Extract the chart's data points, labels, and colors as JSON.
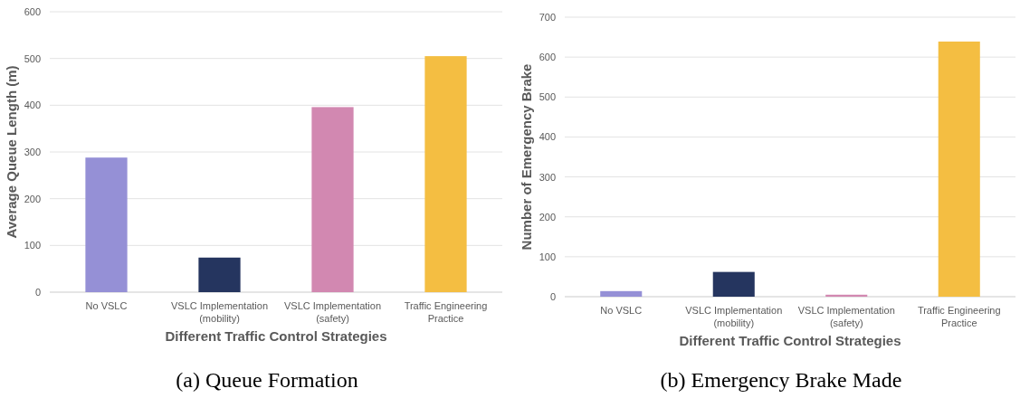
{
  "chart_data": [
    {
      "type": "bar",
      "title": "(a) Queue Formation",
      "xlabel": "Different Traffic Control Strategies",
      "ylabel": "Average Queue Length (m)",
      "categories": [
        "No VSLC",
        "VSLC Implementation (mobility)",
        "VSLC Implementation (safety)",
        "Traffic Engineering Practice"
      ],
      "values": [
        288,
        74,
        396,
        505
      ],
      "colors": [
        "#9590d6",
        "#25355f",
        "#d288b1",
        "#f4be42"
      ],
      "ylim": [
        0,
        600
      ],
      "yticks": [
        0,
        100,
        200,
        300,
        400,
        500,
        600
      ],
      "grid": "y"
    },
    {
      "type": "bar",
      "title": "(b) Emergency Brake Made",
      "xlabel": "Different Traffic Control Strategies",
      "ylabel": "Number of Emergency Brake",
      "categories": [
        "No VSLC",
        "VSLC Implementation (mobility)",
        "VSLC Implementation (safety)",
        "Traffic Engineering Practice"
      ],
      "values": [
        14,
        62,
        5,
        639
      ],
      "colors": [
        "#9590d6",
        "#25355f",
        "#d288b1",
        "#f4be42"
      ],
      "ylim": [
        0,
        700
      ],
      "yticks": [
        0,
        100,
        200,
        300,
        400,
        500,
        600,
        700
      ],
      "grid": "y"
    }
  ]
}
